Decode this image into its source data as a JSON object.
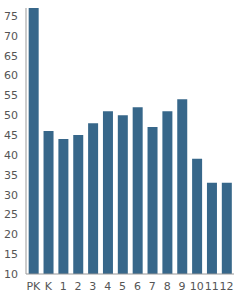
{
  "chart_data": {
    "type": "bar",
    "categories": [
      "PK",
      "K",
      "1",
      "2",
      "3",
      "4",
      "5",
      "6",
      "7",
      "8",
      "9",
      "10",
      "11",
      "12"
    ],
    "values": [
      77,
      46,
      44,
      45,
      48,
      51,
      50,
      52,
      47,
      51,
      54,
      39,
      33,
      33
    ],
    "color": "#37678a",
    "ylim": [
      10,
      77
    ],
    "yticks": [
      10,
      15,
      20,
      25,
      30,
      35,
      40,
      45,
      50,
      55,
      60,
      65,
      70,
      75
    ],
    "grid": false
  }
}
